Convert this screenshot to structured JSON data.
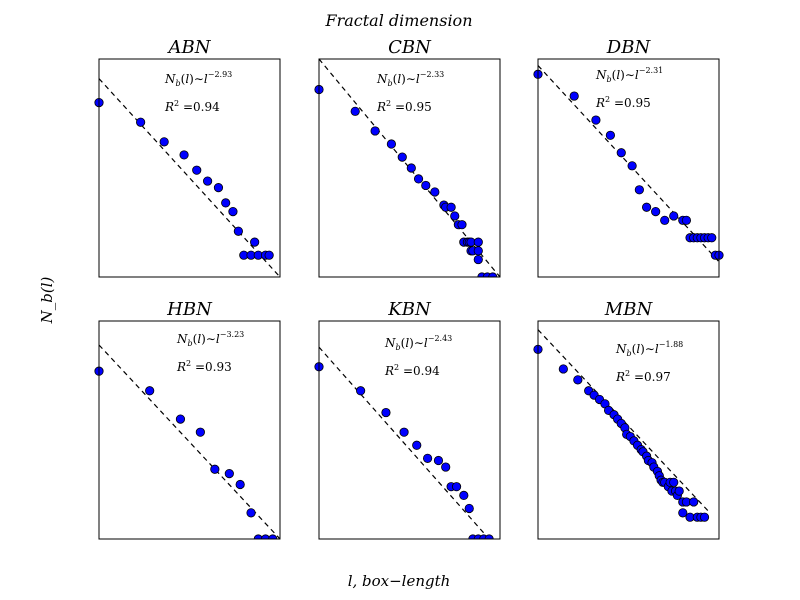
{
  "chart_data": {
    "type": "scatter",
    "title": "Fractal dimension",
    "xlabel": "l, box−length",
    "ylabel": "N_b(l)",
    "panels": [
      {
        "name": "ABN",
        "exponent": "−2.93",
        "r2": "0.94",
        "points": [
          [
            0.0,
            0.8
          ],
          [
            0.23,
            0.71
          ],
          [
            0.36,
            0.62
          ],
          [
            0.47,
            0.56
          ],
          [
            0.54,
            0.49
          ],
          [
            0.6,
            0.44
          ],
          [
            0.66,
            0.41
          ],
          [
            0.7,
            0.34
          ],
          [
            0.74,
            0.3
          ],
          [
            0.77,
            0.21
          ],
          [
            0.8,
            0.1
          ],
          [
            0.84,
            0.1
          ],
          [
            0.86,
            0.16
          ],
          [
            0.88,
            0.1
          ],
          [
            0.92,
            0.1
          ],
          [
            0.94,
            0.1
          ]
        ],
        "fit": [
          [
            0.0,
            0.91
          ],
          [
            1.0,
            0.0
          ]
        ]
      },
      {
        "name": "CBN",
        "exponent": "−2.33",
        "r2": "0.95",
        "points": [
          [
            0.0,
            0.86
          ],
          [
            0.2,
            0.76
          ],
          [
            0.31,
            0.67
          ],
          [
            0.4,
            0.61
          ],
          [
            0.46,
            0.55
          ],
          [
            0.51,
            0.5
          ],
          [
            0.55,
            0.45
          ],
          [
            0.59,
            0.42
          ],
          [
            0.64,
            0.39
          ],
          [
            0.69,
            0.33
          ],
          [
            0.7,
            0.32
          ],
          [
            0.73,
            0.32
          ],
          [
            0.75,
            0.28
          ],
          [
            0.77,
            0.24
          ],
          [
            0.79,
            0.24
          ],
          [
            0.8,
            0.16
          ],
          [
            0.82,
            0.16
          ],
          [
            0.83,
            0.16
          ],
          [
            0.84,
            0.16
          ],
          [
            0.84,
            0.12
          ],
          [
            0.85,
            0.12
          ],
          [
            0.88,
            0.16
          ],
          [
            0.88,
            0.08
          ],
          [
            0.88,
            0.12
          ],
          [
            0.9,
            0.0
          ],
          [
            0.93,
            0.0
          ],
          [
            0.96,
            0.0
          ]
        ],
        "fit": [
          [
            0.0,
            1.0
          ],
          [
            1.0,
            0.0
          ]
        ]
      },
      {
        "name": "DBN",
        "exponent": "−2.31",
        "r2": "0.95",
        "points": [
          [
            0.0,
            0.93
          ],
          [
            0.2,
            0.83
          ],
          [
            0.32,
            0.72
          ],
          [
            0.4,
            0.65
          ],
          [
            0.46,
            0.57
          ],
          [
            0.52,
            0.51
          ],
          [
            0.56,
            0.4
          ],
          [
            0.6,
            0.32
          ],
          [
            0.65,
            0.3
          ],
          [
            0.7,
            0.26
          ],
          [
            0.75,
            0.28
          ],
          [
            0.8,
            0.26
          ],
          [
            0.82,
            0.26
          ],
          [
            0.84,
            0.18
          ],
          [
            0.86,
            0.18
          ],
          [
            0.88,
            0.18
          ],
          [
            0.9,
            0.18
          ],
          [
            0.92,
            0.18
          ],
          [
            0.94,
            0.18
          ],
          [
            0.96,
            0.18
          ],
          [
            0.98,
            0.1
          ],
          [
            1.0,
            0.1
          ]
        ],
        "fit": [
          [
            0.0,
            0.97
          ],
          [
            1.0,
            0.07
          ]
        ]
      },
      {
        "name": "HBN",
        "exponent": "−3.23",
        "r2": "0.93",
        "points": [
          [
            0.0,
            0.77
          ],
          [
            0.28,
            0.68
          ],
          [
            0.45,
            0.55
          ],
          [
            0.56,
            0.49
          ],
          [
            0.64,
            0.32
          ],
          [
            0.72,
            0.3
          ],
          [
            0.78,
            0.25
          ],
          [
            0.84,
            0.12
          ],
          [
            0.88,
            0.0
          ],
          [
            0.92,
            0.0
          ],
          [
            0.96,
            0.0
          ]
        ],
        "fit": [
          [
            0.0,
            0.89
          ],
          [
            1.0,
            0.0
          ]
        ]
      },
      {
        "name": "KBN",
        "exponent": "−2.43",
        "r2": "0.94",
        "points": [
          [
            0.0,
            0.79
          ],
          [
            0.23,
            0.68
          ],
          [
            0.37,
            0.58
          ],
          [
            0.47,
            0.49
          ],
          [
            0.54,
            0.43
          ],
          [
            0.6,
            0.37
          ],
          [
            0.66,
            0.36
          ],
          [
            0.7,
            0.33
          ],
          [
            0.73,
            0.24
          ],
          [
            0.76,
            0.24
          ],
          [
            0.8,
            0.2
          ],
          [
            0.83,
            0.14
          ],
          [
            0.85,
            0.0
          ],
          [
            0.88,
            0.0
          ],
          [
            0.91,
            0.0
          ],
          [
            0.94,
            0.0
          ]
        ],
        "fit": [
          [
            0.0,
            0.88
          ],
          [
            0.94,
            0.0
          ]
        ]
      },
      {
        "name": "MBN",
        "exponent": "−1.88",
        "r2": "0.97",
        "points": [
          [
            0.0,
            0.87
          ],
          [
            0.14,
            0.78
          ],
          [
            0.22,
            0.73
          ],
          [
            0.28,
            0.68
          ],
          [
            0.31,
            0.66
          ],
          [
            0.34,
            0.64
          ],
          [
            0.37,
            0.62
          ],
          [
            0.39,
            0.59
          ],
          [
            0.42,
            0.57
          ],
          [
            0.44,
            0.55
          ],
          [
            0.46,
            0.53
          ],
          [
            0.48,
            0.51
          ],
          [
            0.49,
            0.48
          ],
          [
            0.51,
            0.47
          ],
          [
            0.53,
            0.45
          ],
          [
            0.55,
            0.43
          ],
          [
            0.57,
            0.41
          ],
          [
            0.58,
            0.4
          ],
          [
            0.6,
            0.38
          ],
          [
            0.61,
            0.36
          ],
          [
            0.63,
            0.35
          ],
          [
            0.64,
            0.33
          ],
          [
            0.66,
            0.31
          ],
          [
            0.67,
            0.29
          ],
          [
            0.68,
            0.27
          ],
          [
            0.69,
            0.26
          ],
          [
            0.7,
            0.26
          ],
          [
            0.72,
            0.24
          ],
          [
            0.73,
            0.26
          ],
          [
            0.74,
            0.22
          ],
          [
            0.75,
            0.26
          ],
          [
            0.76,
            0.22
          ],
          [
            0.77,
            0.2
          ],
          [
            0.78,
            0.22
          ],
          [
            0.8,
            0.17
          ],
          [
            0.8,
            0.12
          ],
          [
            0.82,
            0.17
          ],
          [
            0.84,
            0.1
          ],
          [
            0.86,
            0.17
          ],
          [
            0.88,
            0.1
          ],
          [
            0.9,
            0.1
          ],
          [
            0.92,
            0.1
          ]
        ],
        "fit": [
          [
            0.0,
            0.96
          ],
          [
            0.95,
            0.12
          ]
        ]
      }
    ]
  }
}
